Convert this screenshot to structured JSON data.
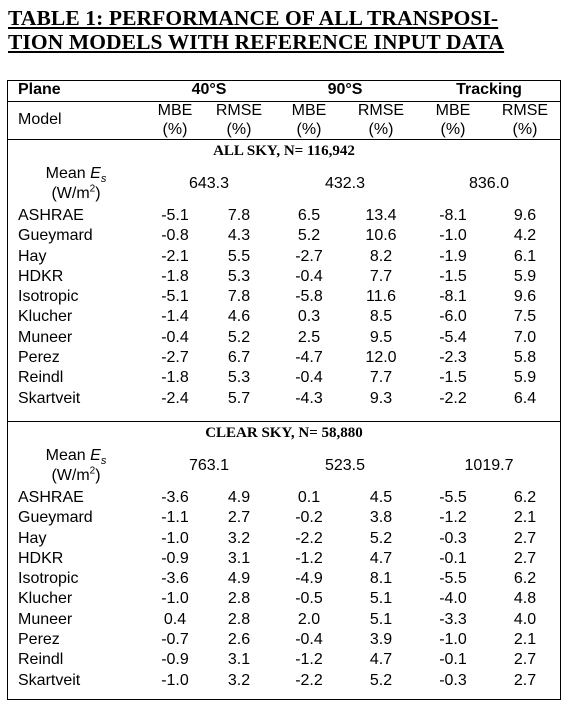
{
  "title": {
    "line1": "TABLE 1:  PERFORMANCE OF ALL TRANSPOSI-",
    "line2": "TION MODELS WITH REFERENCE INPUT DATA"
  },
  "header": {
    "plane": "Plane",
    "model": "Model",
    "planes": [
      "40°S",
      "90°S",
      "Tracking"
    ],
    "mbe": "MBE",
    "rmse": "RMSE",
    "unit": "(%)"
  },
  "mean_label": {
    "main": "Mean ",
    "symbol": "E",
    "subscript": "s",
    "unit_pre": "(W/m",
    "unit_sup": "2",
    "unit_post": ")"
  },
  "sections": [
    {
      "title": "ALL SKY, N= 116,942",
      "means": [
        "643.3",
        "432.3",
        "836.0"
      ],
      "rows": [
        {
          "model": "ASHRAE",
          "values": [
            "-5.1",
            "7.8",
            "6.5",
            "13.4",
            "-8.1",
            "9.6"
          ]
        },
        {
          "model": "Gueymard",
          "values": [
            "-0.8",
            "4.3",
            "5.2",
            "10.6",
            "-1.0",
            "4.2"
          ]
        },
        {
          "model": "Hay",
          "values": [
            "-2.1",
            "5.5",
            "-2.7",
            "8.2",
            "-1.9",
            "6.1"
          ]
        },
        {
          "model": "HDKR",
          "values": [
            "-1.8",
            "5.3",
            "-0.4",
            "7.7",
            "-1.5",
            "5.9"
          ]
        },
        {
          "model": "Isotropic",
          "values": [
            "-5.1",
            "7.8",
            "-5.8",
            "11.6",
            "-8.1",
            "9.6"
          ]
        },
        {
          "model": "Klucher",
          "values": [
            "-1.4",
            "4.6",
            "0.3",
            "8.5",
            "-6.0",
            "7.5"
          ]
        },
        {
          "model": "Muneer",
          "values": [
            "-0.4",
            "5.2",
            "2.5",
            "9.5",
            "-5.4",
            "7.0"
          ]
        },
        {
          "model": "Perez",
          "values": [
            "-2.7",
            "6.7",
            "-4.7",
            "12.0",
            "-2.3",
            "5.8"
          ]
        },
        {
          "model": "Reindl",
          "values": [
            "-1.8",
            "5.3",
            "-0.4",
            "7.7",
            "-1.5",
            "5.9"
          ]
        },
        {
          "model": "Skartveit",
          "values": [
            "-2.4",
            "5.7",
            "-4.3",
            "9.3",
            "-2.2",
            "6.4"
          ]
        }
      ]
    },
    {
      "title": "CLEAR SKY, N= 58,880",
      "means": [
        "763.1",
        "523.5",
        "1019.7"
      ],
      "rows": [
        {
          "model": "ASHRAE",
          "values": [
            "-3.6",
            "4.9",
            "0.1",
            "4.5",
            "-5.5",
            "6.2"
          ]
        },
        {
          "model": "Gueymard",
          "values": [
            "-1.1",
            "2.7",
            "-0.2",
            "3.8",
            "-1.2",
            "2.1"
          ]
        },
        {
          "model": "Hay",
          "values": [
            "-1.0",
            "3.2",
            "-2.2",
            "5.2",
            "-0.3",
            "2.7"
          ]
        },
        {
          "model": "HDKR",
          "values": [
            "-0.9",
            "3.1",
            "-1.2",
            "4.7",
            "-0.1",
            "2.7"
          ]
        },
        {
          "model": "Isotropic",
          "values": [
            "-3.6",
            "4.9",
            "-4.9",
            "8.1",
            "-5.5",
            "6.2"
          ]
        },
        {
          "model": "Klucher",
          "values": [
            "-1.0",
            "2.8",
            "-0.5",
            "5.1",
            "-4.0",
            "4.8"
          ]
        },
        {
          "model": "Muneer",
          "values": [
            "0.4",
            "2.8",
            "2.0",
            "5.1",
            "-3.3",
            "4.0"
          ]
        },
        {
          "model": "Perez",
          "values": [
            "-0.7",
            "2.6",
            "-0.4",
            "3.9",
            "-1.0",
            "2.1"
          ]
        },
        {
          "model": "Reindl",
          "values": [
            "-0.9",
            "3.1",
            "-1.2",
            "4.7",
            "-0.1",
            "2.7"
          ]
        },
        {
          "model": "Skartveit",
          "values": [
            "-1.0",
            "3.2",
            "-2.2",
            "5.2",
            "-0.3",
            "2.7"
          ]
        }
      ]
    }
  ]
}
